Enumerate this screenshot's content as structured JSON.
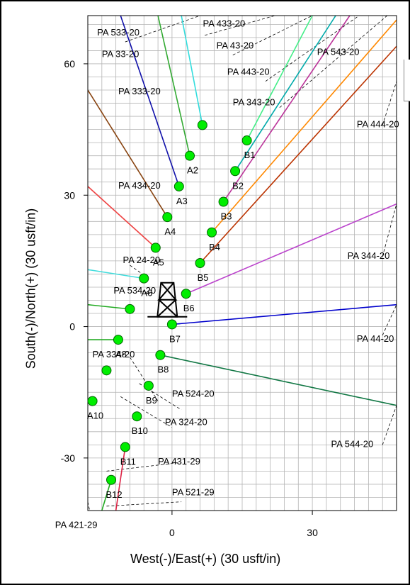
{
  "title": "",
  "axes": {
    "xlabel": "West(-)/East(+) (30 usft/in)",
    "ylabel": "South(-)/North(+) (30 usft/in)",
    "xlim": [
      -18,
      48
    ],
    "ylim": [
      -42,
      71
    ],
    "xticks": [
      0,
      30
    ],
    "yticks": [
      -30,
      0,
      30,
      60
    ],
    "grid_minor": 3,
    "grid": true
  },
  "colors": {
    "grid": "#b4b4b4",
    "slot": "#00ee00",
    "slot_border": "#006600",
    "label": "#000000",
    "dashed": "#000000"
  },
  "chart_data": {
    "type": "scatter",
    "rig_icon": "derrick-icon",
    "rig_position": [
      -1,
      10
    ],
    "slots": [
      {
        "name": "A1",
        "x": 6.5,
        "y": 46,
        "label": ""
      },
      {
        "name": "A2",
        "x": 3.8,
        "y": 39,
        "label": "A2"
      },
      {
        "name": "A3",
        "x": 1.5,
        "y": 32,
        "label": "A3"
      },
      {
        "name": "A4",
        "x": -1,
        "y": 25,
        "label": "A4"
      },
      {
        "name": "A5",
        "x": -3.5,
        "y": 18,
        "label": "A5"
      },
      {
        "name": "A6",
        "x": -6,
        "y": 11,
        "label": "A6"
      },
      {
        "name": "A7",
        "x": -9,
        "y": 4,
        "label": ""
      },
      {
        "name": "A8",
        "x": -11.5,
        "y": -3,
        "label": "A8"
      },
      {
        "name": "A9",
        "x": -14,
        "y": -10,
        "label": ""
      },
      {
        "name": "A10",
        "x": -17,
        "y": -17,
        "label": "A10"
      },
      {
        "name": "B1",
        "x": 16,
        "y": 42.5,
        "label": "B1"
      },
      {
        "name": "B2",
        "x": 13.5,
        "y": 35.5,
        "label": "B2"
      },
      {
        "name": "B3",
        "x": 11,
        "y": 28.5,
        "label": "B3"
      },
      {
        "name": "B4",
        "x": 8.5,
        "y": 21.5,
        "label": "B4"
      },
      {
        "name": "B5",
        "x": 6,
        "y": 14.5,
        "label": "B5"
      },
      {
        "name": "B6",
        "x": 3,
        "y": 7.5,
        "label": "B6"
      },
      {
        "name": "B7",
        "x": 0,
        "y": 0.5,
        "label": "B7"
      },
      {
        "name": "B8",
        "x": -2.5,
        "y": -6.5,
        "label": "B8"
      },
      {
        "name": "B9",
        "x": -5,
        "y": -13.5,
        "label": "B9"
      },
      {
        "name": "B10",
        "x": -7.5,
        "y": -20.5,
        "label": "B10"
      },
      {
        "name": "B11",
        "x": -10,
        "y": -27.5,
        "label": "B11"
      },
      {
        "name": "B12",
        "x": -13,
        "y": -35,
        "label": "B12"
      }
    ],
    "wells": [
      {
        "name": "PA 433-20",
        "color": "#33dddd",
        "from": [
          6.5,
          46
        ],
        "to": [
          2,
          71
        ]
      },
      {
        "name": "PA 43-20",
        "color": "#44ee88",
        "from": [
          16,
          42.5
        ],
        "to": [
          30,
          71
        ]
      },
      {
        "name": "PA 443-20",
        "color": "#00aaaa",
        "from": [
          13.5,
          35.5
        ],
        "to": [
          35,
          71
        ]
      },
      {
        "name": "PA 343-20",
        "color": "#bb3399",
        "from": [
          11,
          28.5
        ],
        "to": [
          38,
          71
        ]
      },
      {
        "name": "PA 543-20",
        "color": "#ff8800",
        "from": [
          8.5,
          21.5
        ],
        "to": [
          48,
          70
        ]
      },
      {
        "name": "PA 444-20",
        "color": "#bb3300",
        "from": [
          6,
          14.5
        ],
        "to": [
          48,
          64
        ]
      },
      {
        "name": "PA 344-20",
        "color": "#bb44cc",
        "from": [
          3,
          7.5
        ],
        "to": [
          48,
          28
        ]
      },
      {
        "name": "PA 44-20",
        "color": "#0000cc",
        "from": [
          0,
          0.5
        ],
        "to": [
          48,
          5
        ]
      },
      {
        "name": "PA 544-20",
        "color": "#117744",
        "from": [
          -2.5,
          -6.5
        ],
        "to": [
          48,
          -18
        ]
      },
      {
        "name": "PA 533-20",
        "color": "#1111aa",
        "from": [
          1.5,
          32
        ],
        "to": [
          -11,
          71
        ]
      },
      {
        "name": "PA 33-20",
        "color": "#33aa33",
        "from": [
          3.8,
          39
        ],
        "to": [
          -3,
          71
        ]
      },
      {
        "name": "PA 333-20",
        "color": "#884411",
        "from": [
          -1,
          25
        ],
        "to": [
          -18,
          54
        ]
      },
      {
        "name": "PA 434-20",
        "color": "#ee4444",
        "from": [
          -3.5,
          18
        ],
        "to": [
          -18,
          32
        ]
      },
      {
        "name": "PA 24-20",
        "color": "#44dddd",
        "from": [
          -6,
          11
        ],
        "to": [
          -18,
          13
        ]
      },
      {
        "name": "PA 534-20",
        "color": "#22aa22",
        "from": [
          -9,
          4
        ],
        "to": [
          -18,
          5
        ]
      },
      {
        "name": "PA 334-20",
        "color": "#22aa22",
        "from": [
          -11.5,
          -3
        ],
        "to": [
          -18,
          -3
        ]
      },
      {
        "name": "PA 421-29",
        "color": "#22aa22",
        "from": [
          -13,
          -35
        ],
        "to": [
          -15,
          -42
        ]
      },
      {
        "name": "PA 521-29",
        "color": "#dd2244",
        "from": [
          -10,
          -27.5
        ],
        "to": [
          -12,
          -42
        ]
      }
    ],
    "well_labels": [
      {
        "text": "PA 533-20",
        "x": -16,
        "y": 66.5
      },
      {
        "text": "PA 433-20",
        "x": 6.6,
        "y": 68.5
      },
      {
        "text": "PA 33-20",
        "x": -15,
        "y": 61.5
      },
      {
        "text": "PA 43-20",
        "x": 9.5,
        "y": 63.5
      },
      {
        "text": "PA 543-20",
        "x": 31,
        "y": 62
      },
      {
        "text": "PA 443-20",
        "x": 11.8,
        "y": 57.5
      },
      {
        "text": "PA 333-20",
        "x": -11.5,
        "y": 53
      },
      {
        "text": "PA 343-20",
        "x": 13,
        "y": 50.5
      },
      {
        "text": "PA 444-20",
        "x": 39.5,
        "y": 45.5
      },
      {
        "text": "PA 434-20",
        "x": -11.5,
        "y": 31.5
      },
      {
        "text": "PA 344-20",
        "x": 37.5,
        "y": 15.5
      },
      {
        "text": "PA 24-20",
        "x": -10.5,
        "y": 14.5
      },
      {
        "text": "PA 534-20",
        "x": -12.5,
        "y": 7.5
      },
      {
        "text": "PA 44-20",
        "x": 39.5,
        "y": -3.5
      },
      {
        "text": "PA 334-20",
        "x": -17,
        "y": -7
      },
      {
        "text": "PA 524-20",
        "x": 0,
        "y": -16
      },
      {
        "text": "PA 324-20",
        "x": -1.5,
        "y": -22.5
      },
      {
        "text": "PA 544-20",
        "x": 34,
        "y": -27.5
      },
      {
        "text": "PA 431-29",
        "x": -3,
        "y": -31.5
      },
      {
        "text": "PA 521-29",
        "x": 0,
        "y": -38.5
      },
      {
        "text": "PA 421-29",
        "x": -25,
        "y": -46
      }
    ],
    "dashed_lines": [
      [
        [
          7,
          66.5
        ],
        [
          22,
          71
        ]
      ],
      [
        [
          -10,
          65
        ],
        [
          6,
          71
        ]
      ],
      [
        [
          13,
          62
        ],
        [
          30,
          71
        ]
      ],
      [
        [
          20,
          56
        ],
        [
          40,
          71
        ]
      ],
      [
        [
          23,
          50
        ],
        [
          46,
          71
        ]
      ],
      [
        [
          45,
          46
        ],
        [
          48,
          56
        ]
      ],
      [
        [
          45,
          16
        ],
        [
          48,
          28
        ]
      ],
      [
        [
          45,
          -2
        ],
        [
          48,
          5
        ]
      ],
      [
        [
          45,
          -27
        ],
        [
          48,
          -18
        ]
      ],
      [
        [
          -9,
          14
        ],
        [
          -5,
          11
        ]
      ],
      [
        [
          -9,
          -7
        ],
        [
          -3,
          -17
        ]
      ],
      [
        [
          -7,
          -13
        ],
        [
          2,
          -19
        ]
      ],
      [
        [
          -11,
          -16
        ],
        [
          0,
          -23
        ]
      ],
      [
        [
          -14,
          -33
        ],
        [
          2,
          -31
        ]
      ],
      [
        [
          -14,
          -41
        ],
        [
          2,
          -40
        ]
      ],
      [
        [
          -18,
          -40
        ],
        [
          -17,
          -45
        ]
      ]
    ]
  }
}
